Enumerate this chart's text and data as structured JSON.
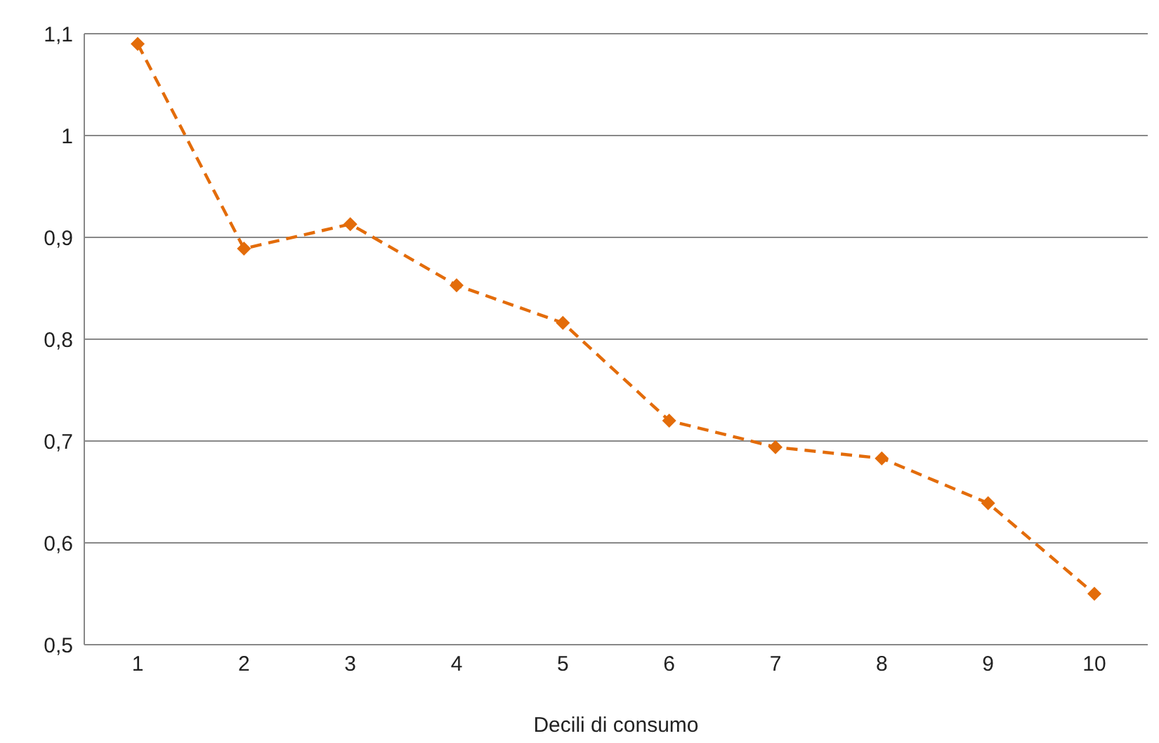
{
  "chart_data": {
    "type": "line",
    "xlabel": "Decili di consumo",
    "categories": [
      "1",
      "2",
      "3",
      "4",
      "5",
      "6",
      "7",
      "8",
      "9",
      "10"
    ],
    "series": [
      {
        "color": "#e36c0a",
        "values": [
          1.09,
          0.889,
          0.913,
          0.853,
          0.816,
          0.72,
          0.694,
          0.683,
          0.639,
          0.55
        ]
      }
    ],
    "ylim": [
      0.5,
      1.1
    ],
    "yticks": [
      {
        "value": 0.5,
        "label": "0,5"
      },
      {
        "value": 0.6,
        "label": "0,6"
      },
      {
        "value": 0.7,
        "label": "0,7"
      },
      {
        "value": 0.8,
        "label": "0,8"
      },
      {
        "value": 0.9,
        "label": "0,9"
      },
      {
        "value": 1,
        "label": "1"
      },
      {
        "value": 1.1,
        "label": "1,1"
      }
    ],
    "grid": "y",
    "legend": false,
    "marker": "diamond",
    "line_style": "dashed"
  }
}
